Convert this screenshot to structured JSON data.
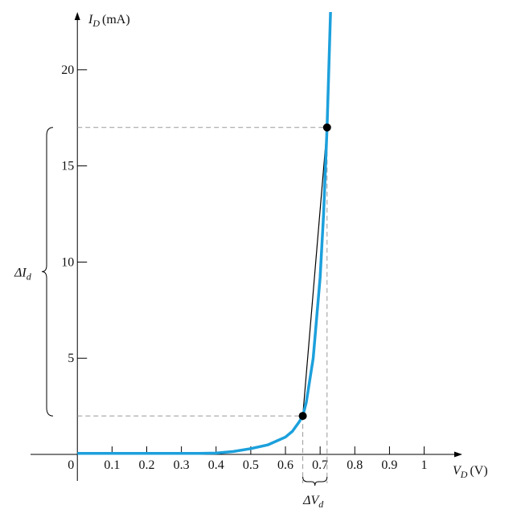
{
  "chart_data": {
    "type": "line",
    "y_label": {
      "symbol": "I",
      "subscript": "D",
      "unit": "(mA)"
    },
    "x_label": {
      "symbol": "V",
      "subscript": "D",
      "unit": "(V)"
    },
    "x": [
      0,
      0.1,
      0.2,
      0.3,
      0.35,
      0.4,
      0.45,
      0.5,
      0.55,
      0.6,
      0.62,
      0.64,
      0.65,
      0.66,
      0.68,
      0.7,
      0.71,
      0.72,
      0.73
    ],
    "series": [
      {
        "color": "#1ca0dc",
        "values": [
          0.05,
          0.05,
          0.05,
          0.05,
          0.05,
          0.07,
          0.15,
          0.3,
          0.5,
          0.9,
          1.2,
          1.7,
          2,
          2.7,
          5,
          9.2,
          12.5,
          17,
          23
        ]
      }
    ],
    "points": {
      "x": [
        0.65,
        0.72
      ],
      "y": [
        2,
        17
      ]
    },
    "xlim": [
      -0.135,
      1.11
    ],
    "ylim": [
      0,
      23
    ],
    "xticks": [
      0,
      0.1,
      0.2,
      0.3,
      0.4,
      0.5,
      0.6,
      0.7,
      0.8,
      0.9,
      1
    ],
    "yticks": [
      5,
      10,
      15,
      20
    ],
    "annotations": {
      "delta_i": {
        "symbol": "ΔI",
        "subscript": "d"
      },
      "delta_v": {
        "symbol": "ΔV",
        "subscript": "d"
      }
    }
  }
}
